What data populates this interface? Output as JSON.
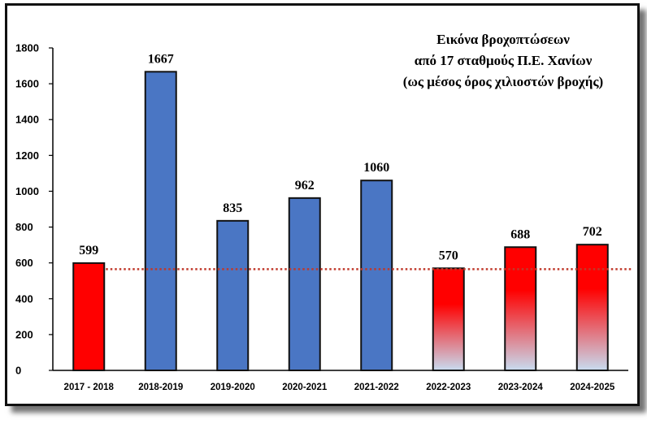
{
  "chart_data": {
    "type": "bar",
    "title_lines": [
      "Εικόνα βροχοπτώσεων",
      "από 17 σταθμούς Π.Ε. Χανίων",
      "(ως μέσος όρος χιλιοστών βροχής)"
    ],
    "categories": [
      "2017 - 2018",
      "2018-2019",
      "2019-2020",
      "2020-2021",
      "2021-2022",
      "2022-2023",
      "2023-2024",
      "2024-2025"
    ],
    "values": [
      599,
      1667,
      835,
      962,
      1060,
      570,
      688,
      702
    ],
    "data_labels": [
      "599",
      "1667",
      "835",
      "962",
      "1060",
      "570",
      "688",
      "702"
    ],
    "bar_styles": [
      "red",
      "blue",
      "blue",
      "blue",
      "blue",
      "gradient",
      "gradient",
      "gradient"
    ],
    "ylim": [
      0,
      1800
    ],
    "yticks": [
      0,
      200,
      400,
      600,
      800,
      1000,
      1200,
      1400,
      1600,
      1800
    ],
    "ytick_labels": [
      "0",
      "200",
      "400",
      "600",
      "800",
      "1000",
      "1200",
      "1400",
      "1600",
      "1800"
    ],
    "reference_line": {
      "value": 565,
      "style": "dotted",
      "color": "#c0392b"
    },
    "grid": false,
    "legend": "none",
    "colors": {
      "blue_bar": "#4a76c4",
      "red_bar": "#ff0000",
      "gradient_top": "#ff0000",
      "gradient_bottom": "#c8dcf0",
      "bar_outline": "#111111"
    }
  }
}
